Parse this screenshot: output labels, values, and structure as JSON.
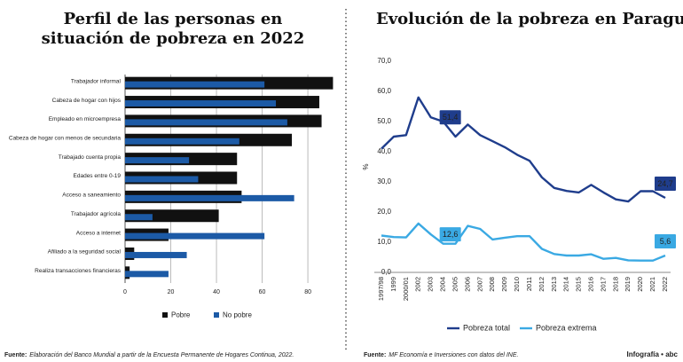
{
  "chart_data": [
    {
      "type": "bar",
      "orientation": "horizontal",
      "title": [
        "Perfil de las personas en",
        "situación de pobreza en 2022"
      ],
      "categories": [
        "Trabajador informal",
        "Cabeza de hogar con hijos",
        "Empleado en microempresa",
        "Cabeza de hogar con menos de secundaria",
        "Trabajado cuenta propia",
        "Edades entre 0-19",
        "Acceso a saneamiento",
        "Trabajador agrícola",
        "Acceso a internet",
        "Afiliado a la seguridad social",
        "Realiza transacciones financieras"
      ],
      "series": [
        {
          "name": "Pobre",
          "color": "#111111",
          "values": [
            91,
            85,
            86,
            73,
            49,
            49,
            51,
            41,
            19,
            4,
            2
          ]
        },
        {
          "name": "No pobre",
          "color": "#1c5aa6",
          "values": [
            61,
            66,
            71,
            50,
            28,
            32,
            74,
            12,
            61,
            27,
            19
          ]
        }
      ],
      "xlim": [
        0,
        92
      ],
      "xticks": [
        0,
        20,
        40,
        60,
        80
      ],
      "grid": true,
      "source_label": "Fuente:",
      "source": "Elaboración del Banco Mundial a partir de la Encuesta Permanente de Hogares Continua, 2022."
    },
    {
      "type": "line",
      "title": "Evolución de la pobreza en Paraguay",
      "y_label": "%",
      "categories": [
        "1997/98",
        "1999",
        "2000/01",
        "2002",
        "2003",
        "2004",
        "2005",
        "2006",
        "2007",
        "2008",
        "2009",
        "2010",
        "2011",
        "2012",
        "2013",
        "2014",
        "2015",
        "2016",
        "2017",
        "2018",
        "2019",
        "2020",
        "2021",
        "2022"
      ],
      "series": [
        {
          "name": "Pobreza total",
          "color": "#1f3d8c",
          "values": [
            41,
            45,
            45.5,
            58,
            51.4,
            50,
            45,
            49,
            45.5,
            43.5,
            41.5,
            39,
            37,
            31.5,
            28,
            27,
            26.5,
            29,
            26.5,
            24.2,
            23.5,
            26.9,
            26.9,
            24.7
          ],
          "value_labels": [
            null,
            null,
            null,
            null,
            "51,4",
            null,
            null,
            null,
            null,
            null,
            null,
            null,
            null,
            null,
            null,
            null,
            null,
            null,
            null,
            null,
            null,
            null,
            null,
            "24,7"
          ]
        },
        {
          "name": "Pobreza extrema",
          "color": "#3aa9e3",
          "values": [
            12.2,
            11.7,
            11.6,
            16.2,
            12.6,
            9.5,
            9.5,
            15.4,
            14.4,
            10.9,
            11.5,
            12,
            12,
            7.8,
            6.1,
            5.6,
            5.6,
            6,
            4.5,
            4.8,
            4,
            3.9,
            3.9,
            5.6
          ],
          "value_labels": [
            null,
            null,
            null,
            null,
            "12,6",
            null,
            null,
            null,
            null,
            null,
            null,
            null,
            null,
            null,
            null,
            null,
            null,
            null,
            null,
            null,
            null,
            null,
            null,
            "5,6"
          ]
        }
      ],
      "ylim": [
        0,
        70
      ],
      "yticks": [
        {
          "value": 0,
          "label": "0,0"
        },
        {
          "value": 10,
          "label": "10,0"
        },
        {
          "value": 20,
          "label": "20,0"
        },
        {
          "value": 30,
          "label": "30,0"
        },
        {
          "value": 40,
          "label": "40,0"
        },
        {
          "value": 50,
          "label": "50,0"
        },
        {
          "value": 60,
          "label": "60,0"
        },
        {
          "value": 70,
          "label": "70,0"
        }
      ],
      "source_label": "Fuente:",
      "source": "MF Economía e Inversiones con datos del INE."
    }
  ],
  "credit": "Infografía • abc"
}
